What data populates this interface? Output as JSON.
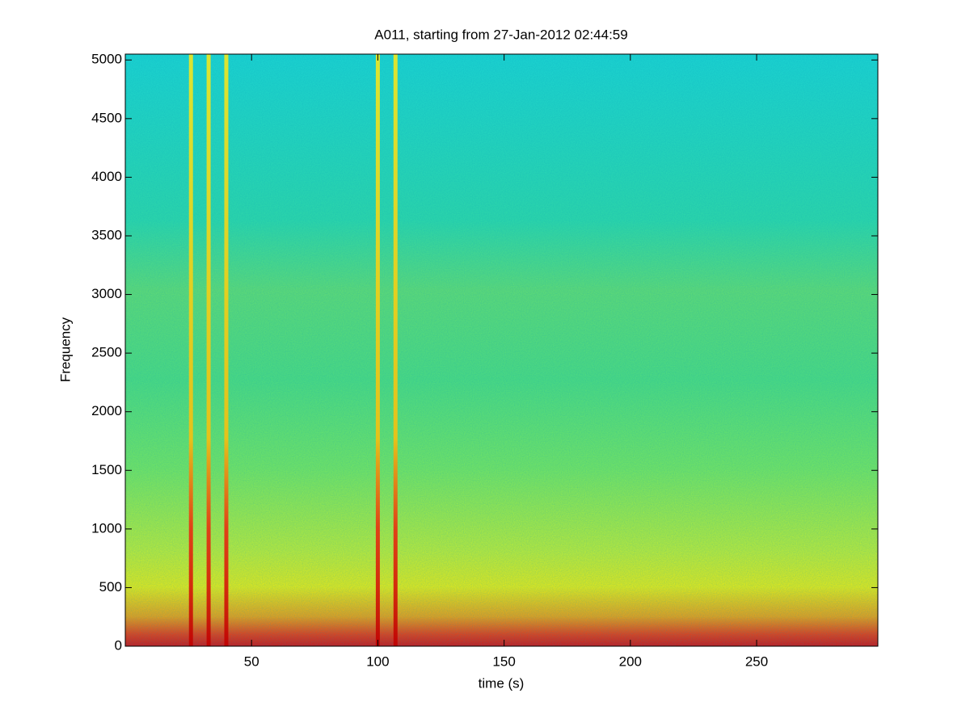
{
  "chart_data": {
    "type": "spectrogram",
    "title": "A011, starting from 27-Jan-2012 02:44:59",
    "x_label": "time (s)",
    "y_label": "Frequency",
    "xlim": [
      0,
      298
    ],
    "xticks": [
      50,
      100,
      150,
      200,
      250
    ],
    "ylim": [
      0,
      5050
    ],
    "yticks": [
      0,
      500,
      1000,
      1500,
      2000,
      2500,
      3000,
      3500,
      4000,
      4500,
      5000
    ],
    "colormap": "jet",
    "x": [
      26,
      33,
      40,
      100,
      107
    ]
  }
}
